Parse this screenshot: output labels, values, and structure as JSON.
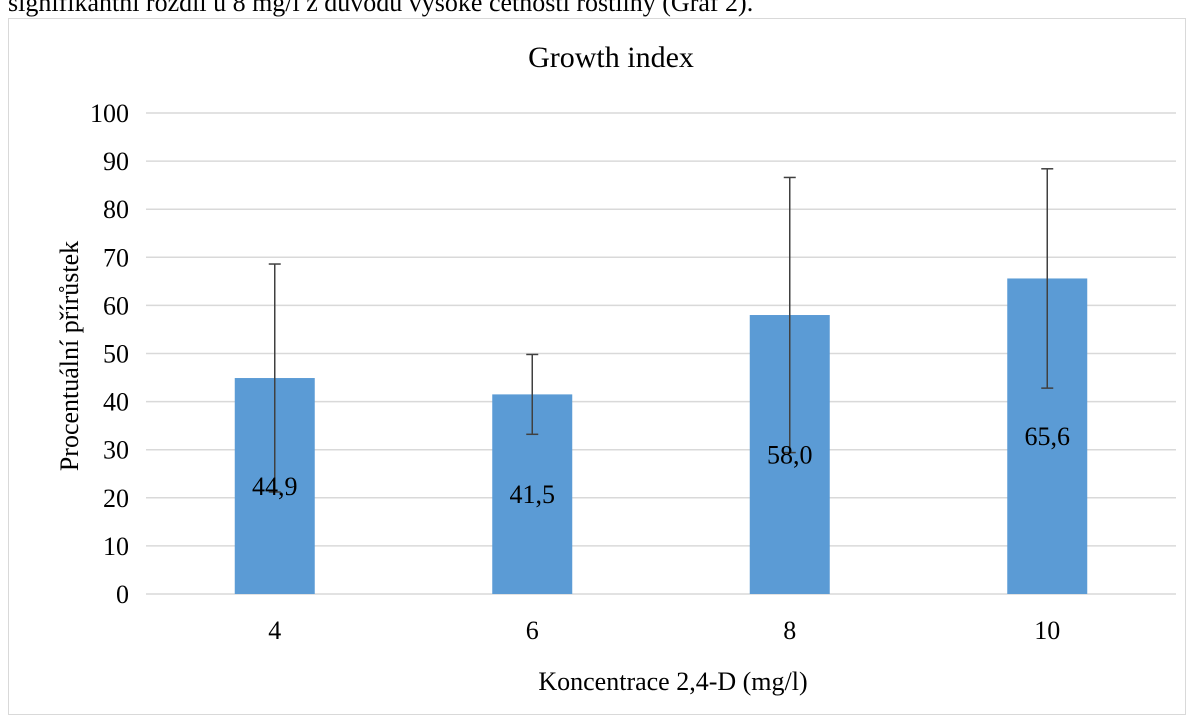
{
  "header_text": "signifikantní rozdíl u 8 mg/l z důvodu vysoké četnosti rostliny (Graf 2).",
  "chart_data": {
    "type": "bar",
    "title": "Growth index",
    "xlabel": "Koncentrace 2,4-D (mg/l)",
    "ylabel": "Procentuální přírůstek",
    "categories": [
      "4",
      "6",
      "8",
      "10"
    ],
    "values": [
      44.9,
      41.5,
      58.0,
      65.6
    ],
    "data_labels": [
      "44,9",
      "41,5",
      "58,0",
      "65,6"
    ],
    "error_low": [
      21.2,
      33.2,
      29.4,
      42.8
    ],
    "error_high": [
      68.6,
      49.8,
      86.6,
      88.4
    ],
    "ylim": [
      0,
      100
    ],
    "yticks": [
      0,
      10,
      20,
      30,
      40,
      50,
      60,
      70,
      80,
      90,
      100
    ],
    "grid": true,
    "bar_color": "#5b9bd5",
    "error_bar_color": "#404040",
    "grid_color": "#d9d9d9"
  }
}
